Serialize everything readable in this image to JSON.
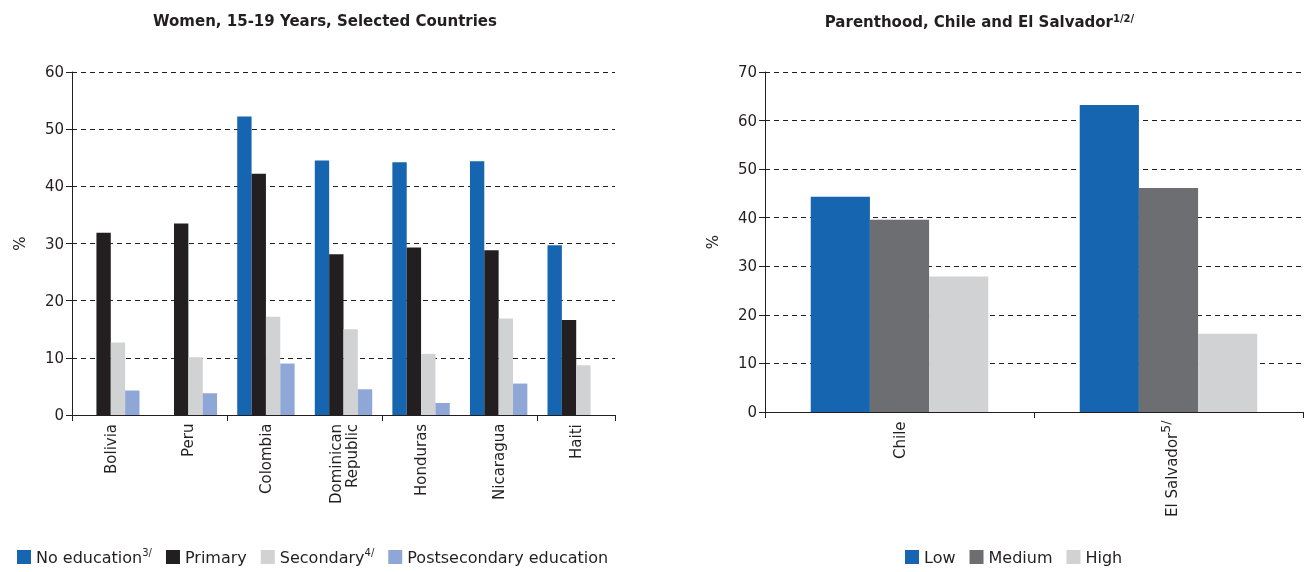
{
  "chart_data": [
    {
      "type": "bar",
      "title": "Women, 15-19 Years, Selected Countries",
      "ylabel": "%",
      "categories": [
        "Bolivia",
        "Peru",
        "Colombia",
        "Dominican Republic",
        "Honduras",
        "Nicaragua",
        "Haiti"
      ],
      "series": [
        {
          "name": "No education$^{3/}$",
          "color": "#1565b0",
          "values": [
            null,
            null,
            52.2,
            44.5,
            44.2,
            44.4,
            29.7
          ]
        },
        {
          "name": "Primary",
          "color": "#231f20",
          "values": [
            31.9,
            33.5,
            42.2,
            28.1,
            29.3,
            28.8,
            16.6
          ]
        },
        {
          "name": "Secondary$^{4/}$",
          "color": "#d1d2d4",
          "values": [
            12.7,
            10.1,
            17.2,
            15.0,
            10.7,
            16.9,
            8.7
          ]
        },
        {
          "name": "Postsecondary education",
          "color": "#8fa7d6",
          "values": [
            4.3,
            3.8,
            9.0,
            4.5,
            2.1,
            5.5,
            null
          ]
        }
      ],
      "ylim": [
        0,
        60
      ],
      "yticks": [
        0,
        10,
        20,
        30,
        40,
        50,
        60
      ],
      "grid": "y",
      "legend": "bottom"
    },
    {
      "type": "bar",
      "title": "Parenthood, Chile and El Salvador$^{1/2/}$",
      "ylabel": "%",
      "categories": [
        "Chile",
        "El Salvador$^{5/}$"
      ],
      "series": [
        {
          "name": "Low",
          "color": "#1565b0",
          "values": [
            44.3,
            63.2
          ]
        },
        {
          "name": "Medium",
          "color": "#6d6e71",
          "values": [
            39.6,
            46.1
          ]
        },
        {
          "name": "High",
          "color": "#d1d2d4",
          "values": [
            27.9,
            16.1
          ]
        }
      ],
      "ylim": [
        0,
        70
      ],
      "yticks": [
        0,
        10,
        20,
        30,
        40,
        50,
        60,
        70
      ],
      "grid": "y",
      "legend": "bottom"
    }
  ]
}
